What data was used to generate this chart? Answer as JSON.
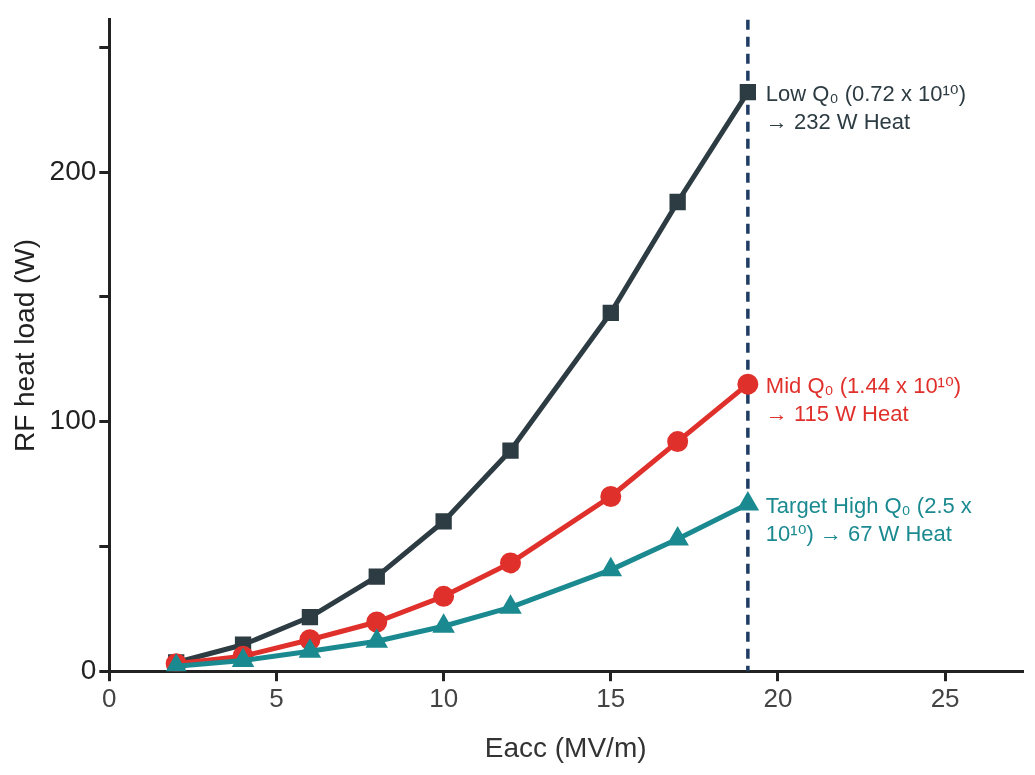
{
  "chart_data": {
    "type": "line",
    "xlabel": "Eacc (MV/m)",
    "ylabel": "RF heat load (W)",
    "x": [
      2,
      4,
      6,
      8,
      10,
      12,
      15,
      17,
      19.1
    ],
    "series": [
      {
        "color": "#2d3b42",
        "marker": "square",
        "values": [
          3.5,
          10.6,
          21.7,
          37.9,
          60,
          88.4,
          143.6,
          188,
          232
        ]
      },
      {
        "color": "#e0302b",
        "marker": "circle",
        "values": [
          3,
          6,
          12.6,
          19.7,
          30,
          43.4,
          70,
          92,
          115
        ]
      },
      {
        "color": "#1a8a90",
        "marker": "triangle",
        "values": [
          2,
          4.3,
          8,
          12,
          18,
          25.6,
          40.6,
          53,
          67
        ]
      }
    ],
    "xlim": [
      0,
      27.3
    ],
    "xticks": [
      0,
      5,
      10,
      15,
      20,
      25
    ],
    "ylim": [
      0,
      261
    ],
    "yticks": [
      0,
      {
        "value": 50,
        "label": null
      },
      100,
      {
        "value": 150,
        "label": null
      },
      200,
      {
        "value": 250,
        "label": null
      }
    ],
    "grid": false,
    "legend": false,
    "line_style": "solid",
    "ref_lines": [
      {
        "axis": "x",
        "value": 19.1,
        "color": "#1f3c64",
        "line_style": "dashed"
      }
    ],
    "annotations": [
      "Low Q₀ (0.72 x 10¹⁰) → 232 W Heat",
      "Mid Q₀ (1.44 x 10¹⁰) → 115 W Heat",
      "Target High Q₀ (2.5 x 10¹⁰) → 67 W Heat"
    ]
  }
}
